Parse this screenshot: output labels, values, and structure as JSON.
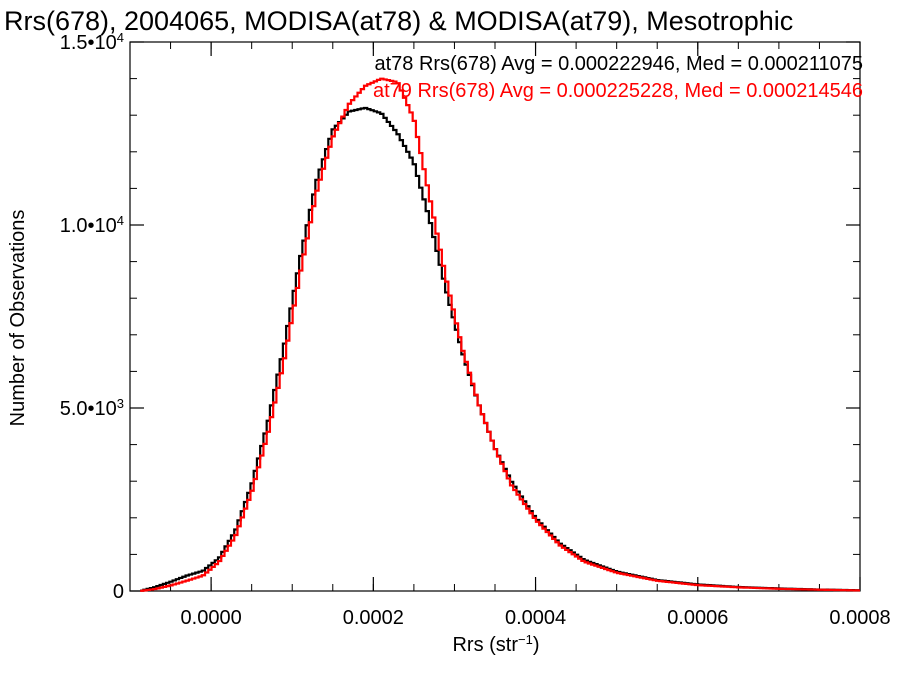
{
  "chart_data": {
    "type": "line",
    "title": "Rrs(678), 2004065, MODISA(at78) & MODISA(at79), Mesotrophic",
    "xlabel": "Rrs (str",
    "xlabel_sup": "−1",
    "xlabel_close": ")",
    "ylabel": "Number of Observations",
    "xlim": [
      -0.0001,
      0.0008
    ],
    "ylim": [
      0,
      15000
    ],
    "x_ticks": [
      {
        "value": 0.0,
        "label": "0.0000"
      },
      {
        "value": 0.0002,
        "label": "0.0002"
      },
      {
        "value": 0.0004,
        "label": "0.0004"
      },
      {
        "value": 0.0006,
        "label": "0.0006"
      },
      {
        "value": 0.0008,
        "label": "0.0008"
      }
    ],
    "y_ticks": [
      {
        "value": 0,
        "mantissa": "0",
        "exp": ""
      },
      {
        "value": 5000,
        "mantissa": "5.0•10",
        "exp": "3"
      },
      {
        "value": 10000,
        "mantissa": "1.0•10",
        "exp": "4"
      },
      {
        "value": 15000,
        "mantissa": "1.5•10",
        "exp": "4"
      }
    ],
    "series": [
      {
        "name": "at78",
        "color": "#000000",
        "legend": "at78 Rrs(678) Avg = 0.000222946, Med = 0.000211075",
        "x": [
          -8.75e-05,
          -7e-05,
          -5e-05,
          -3e-05,
          -1e-05,
          1e-05,
          3e-05,
          5e-05,
          7e-05,
          9e-05,
          0.00011,
          0.00013,
          0.00015,
          0.00017,
          0.00019,
          0.00021,
          0.00023,
          0.00025,
          0.00027,
          0.00029,
          0.00031,
          0.00033,
          0.00035,
          0.00037,
          0.0004,
          0.00043,
          0.00046,
          0.0005,
          0.00055,
          0.0006,
          0.00065,
          0.0007,
          0.00075,
          0.0008
        ],
        "values": [
          0,
          100,
          250,
          420,
          550,
          900,
          1650,
          2900,
          4600,
          6700,
          9100,
          11200,
          12600,
          13100,
          13200,
          13050,
          12500,
          11700,
          10100,
          8200,
          6500,
          5100,
          3900,
          3000,
          2000,
          1300,
          850,
          530,
          300,
          180,
          110,
          70,
          40,
          20
        ]
      },
      {
        "name": "at79",
        "color": "#ff0000",
        "legend": "at79 Rrs(678) Avg = 0.000225228, Med = 0.000214546",
        "x": [
          -8.75e-05,
          -7e-05,
          -5e-05,
          -3e-05,
          -1e-05,
          1e-05,
          3e-05,
          5e-05,
          7e-05,
          9e-05,
          0.00011,
          0.00013,
          0.00015,
          0.00017,
          0.00019,
          0.00021,
          0.00023,
          0.00025,
          0.00027,
          0.00029,
          0.00031,
          0.00033,
          0.00035,
          0.00037,
          0.0004,
          0.00043,
          0.00046,
          0.0005,
          0.00055,
          0.0006,
          0.00065,
          0.0007,
          0.00075,
          0.0008
        ],
        "values": [
          0,
          50,
          150,
          280,
          420,
          800,
          1500,
          2700,
          4300,
          6300,
          8700,
          10900,
          12400,
          13300,
          13800,
          14000,
          13900,
          12900,
          10700,
          8500,
          6600,
          5100,
          3900,
          2900,
          1950,
          1250,
          800,
          500,
          280,
          160,
          100,
          60,
          35,
          15
        ]
      }
    ]
  }
}
